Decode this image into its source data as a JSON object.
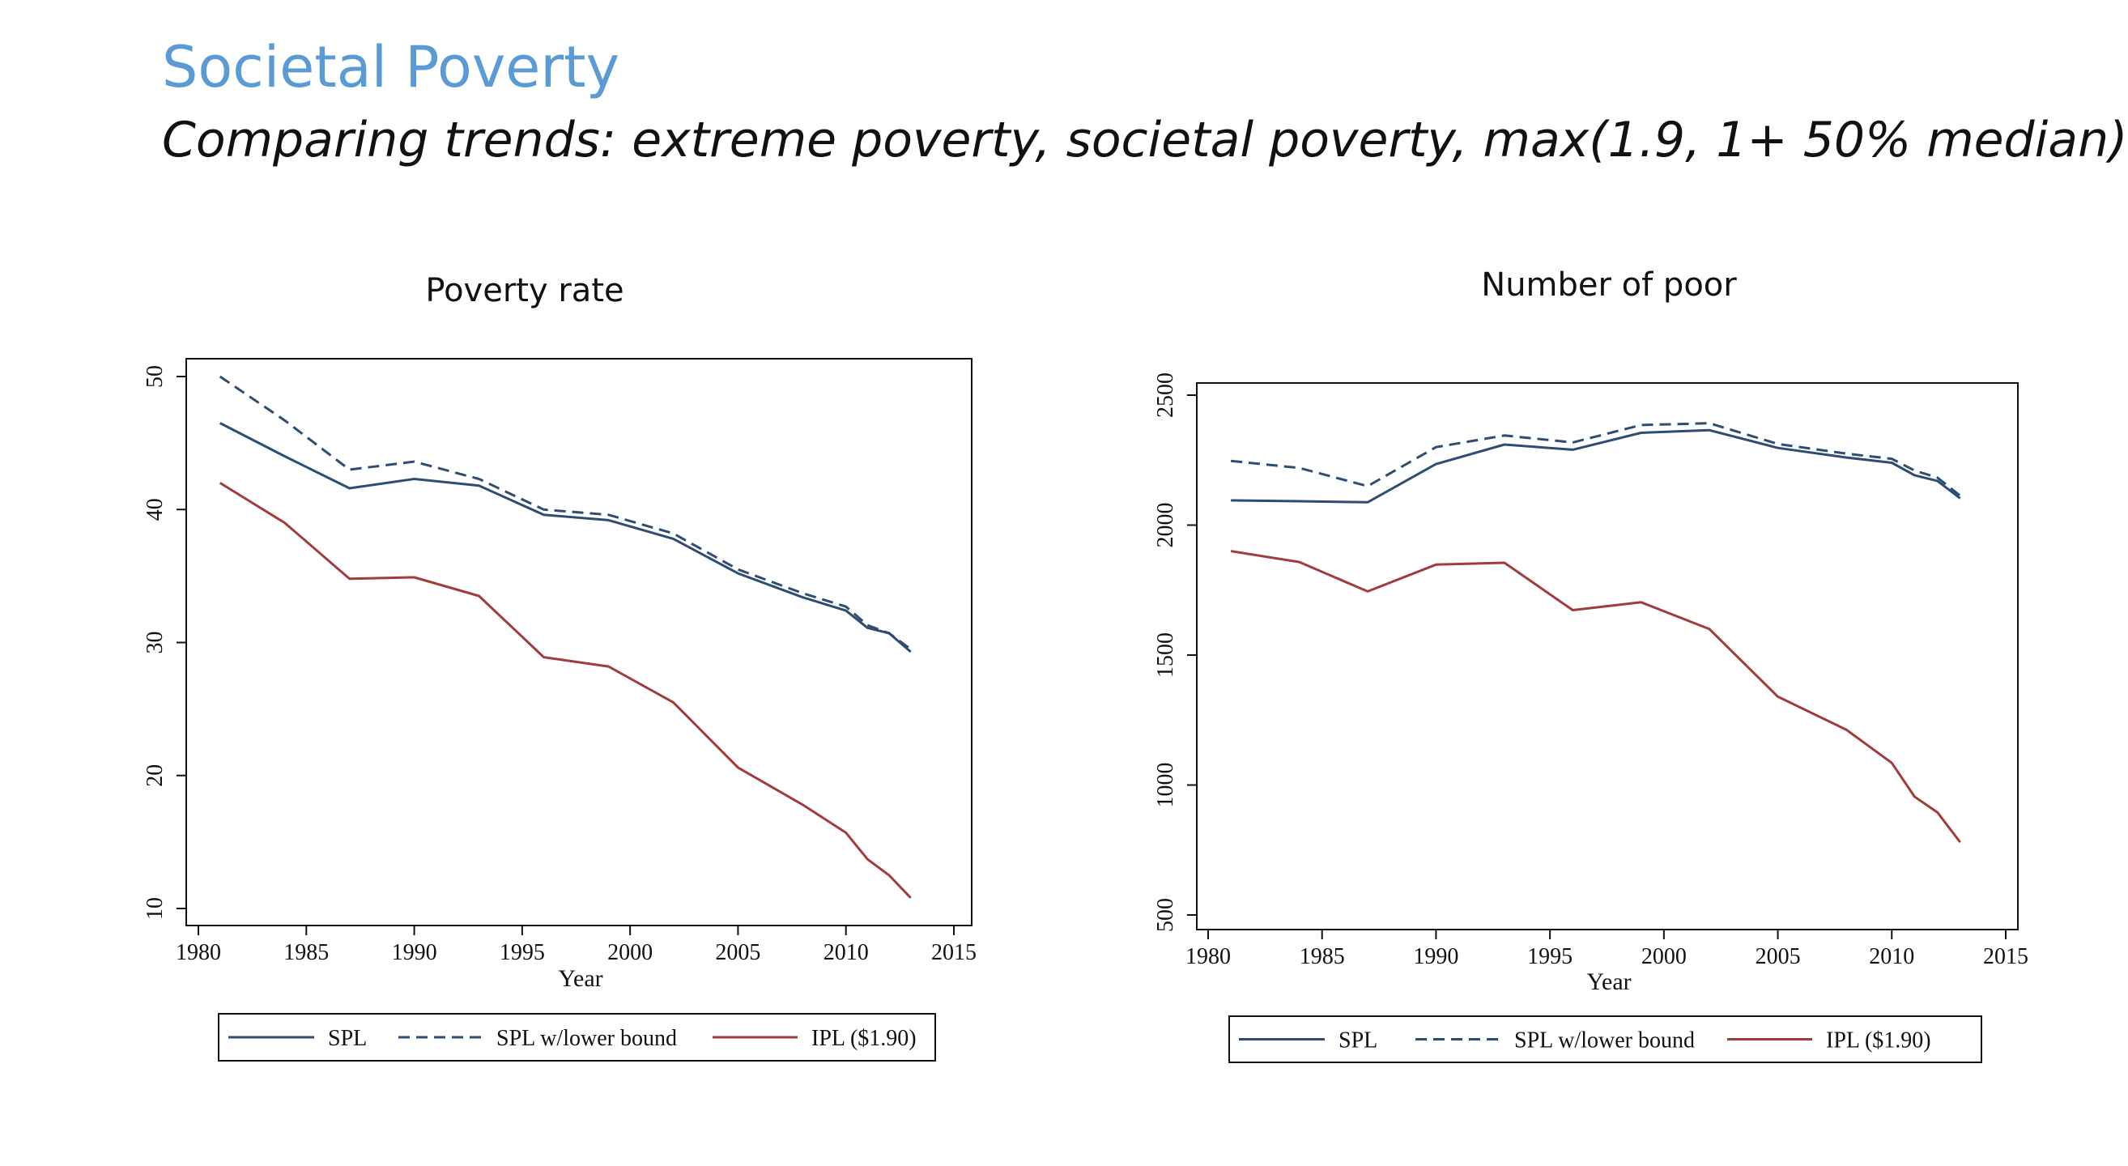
{
  "slide": {
    "title": "Societal Poverty",
    "subtitle": "Comparing trends: extreme poverty, societal poverty, max(1.9, 1+ 50% median)"
  },
  "colors": {
    "spl": "#2e4d72",
    "ipl": "#a03c3c",
    "axis": "#111111"
  },
  "chart_data": [
    {
      "type": "line",
      "title": "Poverty rate",
      "xlabel": "Year",
      "ylabel": "",
      "xlim": [
        1980,
        2015
      ],
      "ylim": [
        10,
        50
      ],
      "xticks": [
        1980,
        1985,
        1990,
        1995,
        2000,
        2005,
        2010,
        2015
      ],
      "yticks": [
        10,
        20,
        30,
        40,
        50
      ],
      "legend_position": "bottom",
      "x": [
        1981,
        1984,
        1987,
        1990,
        1993,
        1996,
        1999,
        2002,
        2005,
        2008,
        2010,
        2011,
        2012,
        2013
      ],
      "series": [
        {
          "name": "SPL",
          "style": "solid",
          "color": "#2e4d72",
          "values": [
            46.5,
            44.0,
            41.6,
            42.3,
            41.8,
            39.6,
            39.2,
            37.8,
            35.2,
            33.4,
            32.4,
            31.1,
            30.7,
            29.3
          ]
        },
        {
          "name": "SPL w/lower bound",
          "style": "dashed",
          "color": "#2e4d72",
          "values": [
            50.0,
            46.7,
            43.0,
            43.6,
            42.3,
            40.0,
            39.6,
            38.2,
            35.5,
            33.7,
            32.7,
            31.3,
            30.7,
            29.5
          ]
        },
        {
          "name": "IPL ($1.90)",
          "style": "solid",
          "color": "#a03c3c",
          "values": [
            42.0,
            39.0,
            34.8,
            34.9,
            33.5,
            28.9,
            28.2,
            25.5,
            20.6,
            17.8,
            15.7,
            13.7,
            12.5,
            10.8
          ]
        }
      ]
    },
    {
      "type": "line",
      "title": "Number of poor",
      "xlabel": "Year",
      "ylabel": "",
      "xlim": [
        1980,
        2015
      ],
      "ylim": [
        500,
        2550
      ],
      "xticks": [
        1980,
        1985,
        1990,
        1995,
        2000,
        2005,
        2010,
        2015
      ],
      "yticks": [
        500,
        1000,
        1500,
        2000,
        2500
      ],
      "legend_position": "bottom",
      "x": [
        1981,
        1984,
        1987,
        1990,
        1993,
        1996,
        1999,
        2002,
        2005,
        2008,
        2010,
        2011,
        2012,
        2013
      ],
      "series": [
        {
          "name": "SPL",
          "style": "solid",
          "color": "#2e4d72",
          "values": [
            2095,
            2092,
            2088,
            2235,
            2310,
            2290,
            2355,
            2365,
            2297,
            2260,
            2240,
            2192,
            2170,
            2103
          ]
        },
        {
          "name": "SPL w/lower bound",
          "style": "dashed",
          "color": "#2e4d72",
          "values": [
            2247,
            2220,
            2150,
            2300,
            2345,
            2318,
            2385,
            2392,
            2312,
            2275,
            2255,
            2210,
            2183,
            2113
          ]
        },
        {
          "name": "IPL ($1.90)",
          "style": "solid",
          "color": "#a03c3c",
          "values": [
            1900,
            1858,
            1745,
            1848,
            1855,
            1673,
            1703,
            1600,
            1340,
            1213,
            1085,
            955,
            895,
            780
          ]
        }
      ]
    }
  ]
}
